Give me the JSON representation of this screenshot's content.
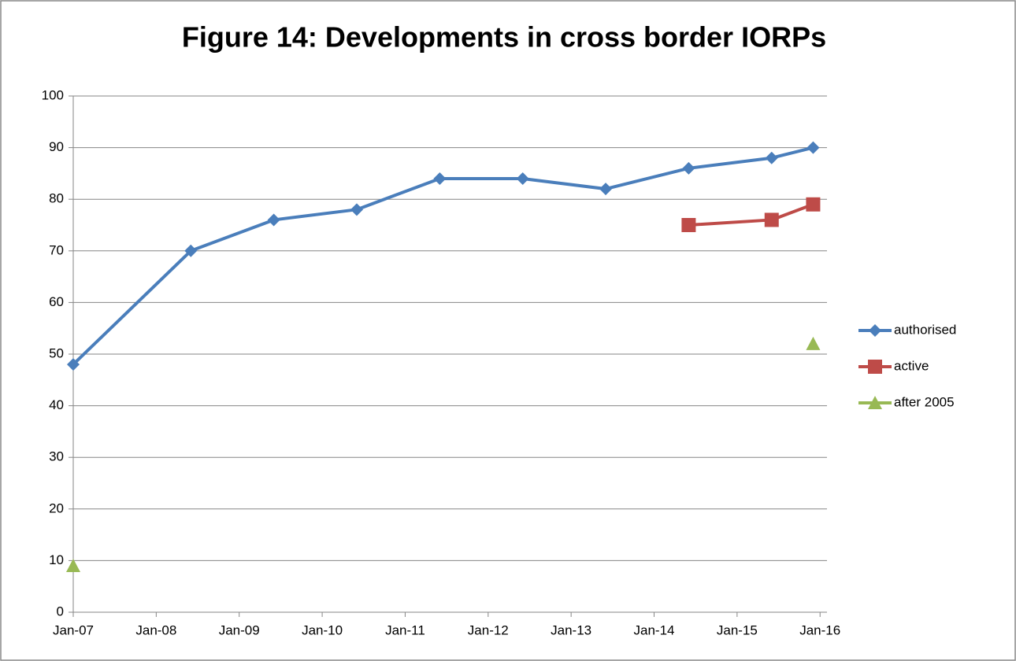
{
  "chart_data": {
    "type": "line",
    "title": "Figure 14: Developments in cross border IORPs",
    "x": [
      "2007-01",
      "2008-06",
      "2009-06",
      "2010-06",
      "2011-06",
      "2012-06",
      "2013-06",
      "2014-06",
      "2015-06",
      "2015-12"
    ],
    "series": [
      {
        "name": "authorised",
        "color": "#4a7ebb",
        "marker": "diamond",
        "values": [
          48,
          70,
          76,
          78,
          84,
          84,
          82,
          86,
          88,
          90
        ]
      },
      {
        "name": "active",
        "color": "#be4b48",
        "marker": "square",
        "values": [
          null,
          null,
          null,
          null,
          null,
          null,
          null,
          75,
          76,
          79
        ]
      },
      {
        "name": "after 2005",
        "color": "#98b954",
        "marker": "triangle",
        "values": [
          9,
          null,
          null,
          null,
          null,
          null,
          null,
          null,
          null,
          52
        ]
      }
    ],
    "xlim": [
      "2007-01",
      "2016-02"
    ],
    "xticks": [
      {
        "value": "2007-01",
        "label": "Jan-07"
      },
      {
        "value": "2008-01",
        "label": "Jan-08"
      },
      {
        "value": "2009-01",
        "label": "Jan-09"
      },
      {
        "value": "2010-01",
        "label": "Jan-10"
      },
      {
        "value": "2011-01",
        "label": "Jan-11"
      },
      {
        "value": "2012-01",
        "label": "Jan-12"
      },
      {
        "value": "2013-01",
        "label": "Jan-13"
      },
      {
        "value": "2014-01",
        "label": "Jan-14"
      },
      {
        "value": "2015-01",
        "label": "Jan-15"
      },
      {
        "value": "2016-01",
        "label": "Jan-16"
      }
    ],
    "ylim": [
      0,
      100
    ],
    "yticks": [
      0,
      10,
      20,
      30,
      40,
      50,
      60,
      70,
      80,
      90,
      100
    ],
    "grid": true,
    "legend": "right"
  }
}
